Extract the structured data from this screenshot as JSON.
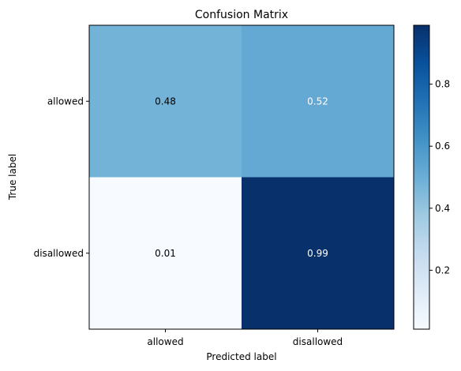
{
  "chart_data": {
    "type": "heatmap",
    "title": "Confusion Matrix",
    "xlabel": "Predicted label",
    "ylabel": "True label",
    "x_categories": [
      "allowed",
      "disallowed"
    ],
    "y_categories": [
      "allowed",
      "disallowed"
    ],
    "values": [
      [
        0.48,
        0.52
      ],
      [
        0.01,
        0.99
      ]
    ],
    "value_labels": [
      [
        "0.48",
        "0.52"
      ],
      [
        "0.01",
        "0.99"
      ]
    ],
    "colormap": "Blues",
    "color_range": [
      0.01,
      0.99
    ],
    "colorbar": {
      "ticks": [
        0.2,
        0.4,
        0.6,
        0.8
      ],
      "tick_labels": [
        "0.2",
        "0.4",
        "0.6",
        "0.8"
      ],
      "placement": "right"
    },
    "grid": false
  }
}
